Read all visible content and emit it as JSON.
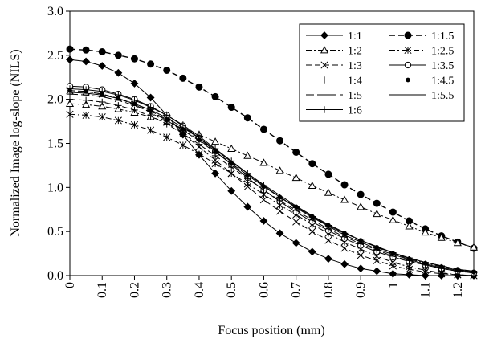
{
  "chart_data": {
    "type": "line",
    "title": "",
    "xlabel": "Focus position (mm)",
    "ylabel": "Normalized Image log-slope (NILS)",
    "xlim": [
      0,
      1.25
    ],
    "ylim": [
      0,
      3.0
    ],
    "x_ticks": [
      "0",
      "0.1",
      "0.2",
      "0.3",
      "0.4",
      "0.5",
      "0.6",
      "0.7",
      "0.8",
      "0.9",
      "1",
      "1.1",
      "1.2"
    ],
    "x_tick_values": [
      0,
      0.1,
      0.2,
      0.3,
      0.4,
      0.5,
      0.6,
      0.7,
      0.8,
      0.9,
      1.0,
      1.1,
      1.2
    ],
    "y_ticks": [
      "0.0",
      "0.5",
      "1.0",
      "1.5",
      "2.0",
      "2.5",
      "3.0"
    ],
    "y_tick_values": [
      0,
      0.5,
      1.0,
      1.5,
      2.0,
      2.5,
      3.0
    ],
    "grid": false,
    "legend_position": "top-right",
    "x": [
      0,
      0.05,
      0.1,
      0.15,
      0.2,
      0.25,
      0.3,
      0.35,
      0.4,
      0.45,
      0.5,
      0.55,
      0.6,
      0.65,
      0.7,
      0.75,
      0.8,
      0.85,
      0.9,
      0.95,
      1.0,
      1.05,
      1.1,
      1.15,
      1.2,
      1.25
    ],
    "series": [
      {
        "name": "1:1",
        "dash": "solid",
        "marker": "diamond",
        "values": [
          2.45,
          2.43,
          2.38,
          2.3,
          2.18,
          2.02,
          1.82,
          1.6,
          1.37,
          1.16,
          0.96,
          0.78,
          0.62,
          0.48,
          0.37,
          0.27,
          0.19,
          0.13,
          0.08,
          0.05,
          0.02,
          0.01,
          0.0,
          0.0,
          0.0,
          0.0
        ]
      },
      {
        "name": "1:1.5",
        "dash": "dashed",
        "marker": "circle-filled",
        "values": [
          2.57,
          2.56,
          2.54,
          2.5,
          2.46,
          2.4,
          2.33,
          2.24,
          2.14,
          2.03,
          1.91,
          1.79,
          1.66,
          1.53,
          1.4,
          1.27,
          1.15,
          1.03,
          0.92,
          0.82,
          0.72,
          0.62,
          0.53,
          0.45,
          0.38,
          0.31
        ]
      },
      {
        "name": "1:2",
        "dash": "dash-dot",
        "marker": "triangle-open",
        "values": [
          1.95,
          1.94,
          1.92,
          1.89,
          1.85,
          1.8,
          1.74,
          1.67,
          1.6,
          1.52,
          1.44,
          1.36,
          1.28,
          1.19,
          1.11,
          1.02,
          0.94,
          0.86,
          0.78,
          0.7,
          0.63,
          0.56,
          0.49,
          0.43,
          0.37,
          0.32
        ]
      },
      {
        "name": "1:2.5",
        "dash": "dash-dot",
        "marker": "asterisk",
        "values": [
          1.83,
          1.82,
          1.8,
          1.76,
          1.71,
          1.65,
          1.57,
          1.48,
          1.38,
          1.27,
          1.16,
          1.04,
          0.92,
          0.8,
          0.69,
          0.58,
          0.48,
          0.38,
          0.3,
          0.22,
          0.15,
          0.1,
          0.06,
          0.03,
          0.01,
          0.0
        ]
      },
      {
        "name": "1:3",
        "dash": "dashed",
        "marker": "x",
        "values": [
          2.1,
          2.09,
          2.06,
          2.01,
          1.94,
          1.85,
          1.74,
          1.61,
          1.46,
          1.31,
          1.16,
          1.01,
          0.86,
          0.73,
          0.61,
          0.5,
          0.4,
          0.31,
          0.23,
          0.17,
          0.11,
          0.07,
          0.04,
          0.02,
          0.01,
          0.0
        ]
      },
      {
        "name": "1:3.5",
        "dash": "solid",
        "marker": "circle-open",
        "values": [
          2.15,
          2.14,
          2.11,
          2.06,
          2.0,
          1.92,
          1.82,
          1.7,
          1.56,
          1.41,
          1.26,
          1.11,
          0.97,
          0.84,
          0.72,
          0.61,
          0.51,
          0.42,
          0.34,
          0.27,
          0.21,
          0.16,
          0.12,
          0.08,
          0.05,
          0.03
        ]
      },
      {
        "name": "1:4",
        "dash": "dashed",
        "marker": "plus",
        "values": [
          2.0,
          1.99,
          1.97,
          1.93,
          1.88,
          1.81,
          1.72,
          1.61,
          1.49,
          1.36,
          1.23,
          1.1,
          0.97,
          0.85,
          0.74,
          0.63,
          0.53,
          0.44,
          0.36,
          0.29,
          0.22,
          0.17,
          0.12,
          0.08,
          0.05,
          0.03
        ]
      },
      {
        "name": "1:4.5",
        "dash": "dash-dot",
        "marker": "dot",
        "values": [
          2.1,
          2.09,
          2.06,
          2.01,
          1.95,
          1.87,
          1.77,
          1.66,
          1.54,
          1.41,
          1.27,
          1.14,
          1.01,
          0.89,
          0.78,
          0.67,
          0.57,
          0.48,
          0.4,
          0.32,
          0.25,
          0.19,
          0.14,
          0.1,
          0.07,
          0.04
        ]
      },
      {
        "name": "1:5",
        "dash": "long-dash",
        "marker": "dash",
        "values": [
          2.06,
          2.05,
          2.03,
          1.99,
          1.93,
          1.86,
          1.76,
          1.65,
          1.53,
          1.4,
          1.27,
          1.14,
          1.01,
          0.89,
          0.78,
          0.67,
          0.57,
          0.48,
          0.4,
          0.32,
          0.26,
          0.2,
          0.15,
          0.11,
          0.07,
          0.05
        ]
      },
      {
        "name": "1:5.5",
        "dash": "solid",
        "marker": "none",
        "values": [
          2.08,
          2.07,
          2.05,
          2.01,
          1.95,
          1.88,
          1.79,
          1.68,
          1.56,
          1.43,
          1.29,
          1.16,
          1.03,
          0.91,
          0.79,
          0.68,
          0.58,
          0.49,
          0.4,
          0.33,
          0.26,
          0.2,
          0.15,
          0.11,
          0.07,
          0.05
        ]
      },
      {
        "name": "1:6",
        "dash": "solid",
        "marker": "plus",
        "values": [
          2.12,
          2.11,
          2.09,
          2.05,
          1.99,
          1.91,
          1.82,
          1.71,
          1.58,
          1.44,
          1.3,
          1.16,
          1.02,
          0.89,
          0.77,
          0.66,
          0.56,
          0.46,
          0.38,
          0.3,
          0.24,
          0.18,
          0.13,
          0.09,
          0.06,
          0.04
        ]
      }
    ]
  }
}
